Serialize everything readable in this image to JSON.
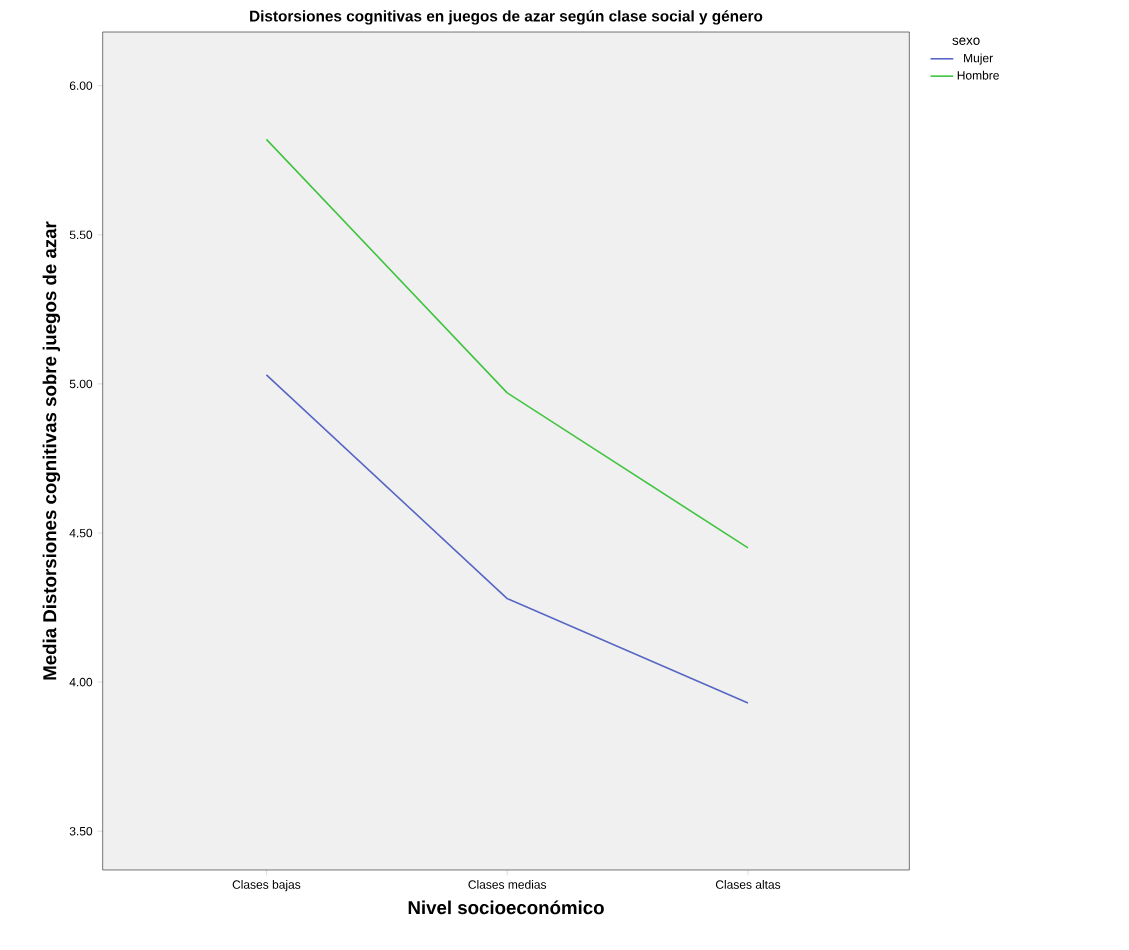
{
  "chart_data": {
    "type": "line",
    "title": "Distorsiones cognitivas en juegos de azar según clase social y género",
    "xlabel": "Nivel socioeconómico",
    "ylabel": "Media Distorsiones cognitivas sobre juegos de azar",
    "legend_title": "sexo",
    "legend": "top right",
    "categories": [
      "Clases bajas",
      "Clases medias",
      "Clases altas"
    ],
    "series": [
      {
        "name": "Mujer",
        "color": "#5766c4",
        "values": [
          5.03,
          4.28,
          3.93
        ]
      },
      {
        "name": "Hombre",
        "color": "#3fc43f",
        "values": [
          5.82,
          4.97,
          4.45
        ]
      }
    ],
    "ylim": [
      3.37,
      6.18
    ],
    "yticks": [
      {
        "value": 3.5,
        "label": "3.50"
      },
      {
        "value": 4.0,
        "label": "4.00"
      },
      {
        "value": 4.5,
        "label": "4.50"
      },
      {
        "value": 5.0,
        "label": "5.00"
      },
      {
        "value": 5.5,
        "label": "5.50"
      },
      {
        "value": 6.0,
        "label": "6.00"
      }
    ]
  }
}
